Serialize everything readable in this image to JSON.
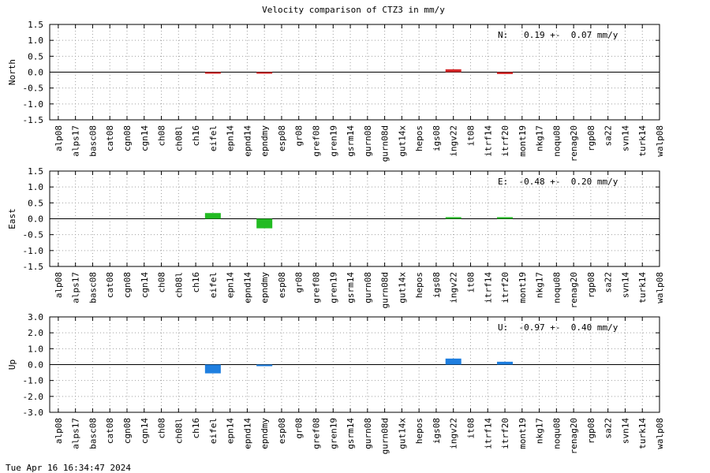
{
  "title": "Velocity comparison of CTZ3 in mm/y",
  "timestamp": "Tue Apr 16 16:34:47 2024",
  "chart_data": [
    {
      "type": "bar",
      "ylabel": "North",
      "ylim": [
        -1.5,
        1.5
      ],
      "yticks": [
        "1.5",
        "1.0",
        "0.5",
        "0.0",
        "-0.5",
        "-1.0",
        "-1.5"
      ],
      "grid": true,
      "color": "#d62728",
      "annotation": "N:   0.19 +-  0.07 mm/y",
      "categories": [
        "alp08",
        "alps17",
        "basc08",
        "cat08",
        "cgn08",
        "cgn14",
        "ch08",
        "ch08l",
        "ch16",
        "eifel",
        "epn14",
        "epnd14",
        "epndmy",
        "esp08",
        "gr08",
        "gref08",
        "gren19",
        "gsrm14",
        "gurn08",
        "gurn08d",
        "gut14x",
        "hepos",
        "igs08",
        "ingv22",
        "it08",
        "itrf14",
        "itrf20",
        "mont19",
        "nkg17",
        "noqu08",
        "renag20",
        "rgp08",
        "sa22",
        "svn14",
        "turk14",
        "walp08"
      ],
      "values": [
        null,
        null,
        null,
        null,
        null,
        null,
        null,
        null,
        null,
        -0.02,
        null,
        null,
        -0.03,
        null,
        null,
        null,
        null,
        null,
        null,
        null,
        null,
        null,
        null,
        0.09,
        null,
        null,
        -0.06,
        null,
        null,
        null,
        null,
        null,
        null,
        null,
        null,
        null
      ]
    },
    {
      "type": "bar",
      "ylabel": "East",
      "ylim": [
        -1.5,
        1.5
      ],
      "yticks": [
        "1.5",
        "1.0",
        "0.5",
        "0.0",
        "-0.5",
        "-1.0",
        "-1.5"
      ],
      "grid": true,
      "color": "#22bb22",
      "annotation": "E:  -0.48 +-  0.20 mm/y",
      "categories": [
        "alp08",
        "alps17",
        "basc08",
        "cat08",
        "cgn08",
        "cgn14",
        "ch08",
        "ch08l",
        "ch16",
        "eifel",
        "epn14",
        "epnd14",
        "epndmy",
        "esp08",
        "gr08",
        "gref08",
        "gren19",
        "gsrm14",
        "gurn08",
        "gurn08d",
        "gut14x",
        "hepos",
        "igs08",
        "ingv22",
        "it08",
        "itrf14",
        "itrf20",
        "mont19",
        "nkg17",
        "noqu08",
        "renag20",
        "rgp08",
        "sa22",
        "svn14",
        "turk14",
        "walp08"
      ],
      "values": [
        null,
        null,
        null,
        null,
        null,
        null,
        null,
        null,
        null,
        0.18,
        null,
        null,
        -0.3,
        null,
        null,
        null,
        null,
        null,
        null,
        null,
        null,
        null,
        null,
        0.05,
        null,
        null,
        0.02,
        null,
        null,
        null,
        null,
        null,
        null,
        null,
        null,
        null
      ]
    },
    {
      "type": "bar",
      "ylabel": "Up",
      "ylim": [
        -3.0,
        3.0
      ],
      "yticks": [
        "3.0",
        "2.0",
        "1.0",
        "0.0",
        "-1.0",
        "-2.0",
        "-3.0"
      ],
      "grid": true,
      "color": "#1f7fe0",
      "annotation": "U:  -0.97 +-  0.40 mm/y",
      "categories": [
        "alp08",
        "alps17",
        "basc08",
        "cat08",
        "cgn08",
        "cgn14",
        "ch08",
        "ch08l",
        "ch16",
        "eifel",
        "epn14",
        "epnd14",
        "epndmy",
        "esp08",
        "gr08",
        "gref08",
        "gren19",
        "gsrm14",
        "gurn08",
        "gurn08d",
        "gut14x",
        "hepos",
        "igs08",
        "ingv22",
        "it08",
        "itrf14",
        "itrf20",
        "mont19",
        "nkg17",
        "noqu08",
        "renag20",
        "rgp08",
        "sa22",
        "svn14",
        "turk14",
        "walp08"
      ],
      "values": [
        null,
        null,
        null,
        null,
        null,
        null,
        null,
        null,
        null,
        -0.55,
        null,
        null,
        -0.08,
        null,
        null,
        null,
        null,
        null,
        null,
        null,
        null,
        null,
        null,
        0.38,
        null,
        null,
        0.18,
        null,
        null,
        null,
        null,
        null,
        null,
        null,
        null,
        null
      ]
    }
  ]
}
